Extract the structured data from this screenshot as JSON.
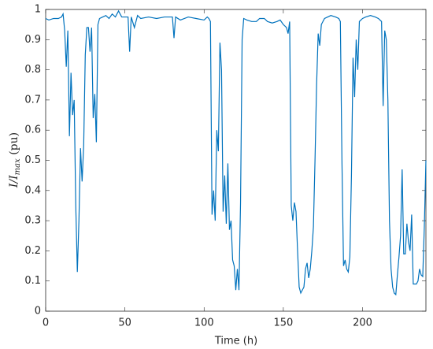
{
  "chart_data": {
    "type": "line",
    "xlabel": "Time (h)",
    "ylabel": [
      "I/I",
      "max",
      " (pu)"
    ],
    "xlim": [
      0,
      240
    ],
    "xticks": [
      0,
      50,
      100,
      150,
      200
    ],
    "ylim": [
      0,
      1
    ],
    "yticks": [
      0,
      0.1,
      0.2,
      0.3,
      0.4,
      0.5,
      0.6,
      0.7,
      0.8,
      0.9,
      1
    ],
    "series": [
      {
        "color": "#0072bd",
        "x": [
          0,
          2,
          5,
          8,
          10,
          11,
          12,
          13,
          14,
          15,
          16,
          17,
          18,
          19,
          20,
          21,
          22,
          23,
          24,
          25,
          26,
          27,
          28,
          29,
          30,
          31,
          32,
          33,
          34,
          36,
          38,
          40,
          42,
          44,
          46,
          48,
          50,
          52,
          53,
          54,
          56,
          58,
          60,
          65,
          70,
          75,
          80,
          81,
          82,
          85,
          90,
          95,
          100,
          102,
          103,
          104,
          105,
          106,
          107,
          108,
          109,
          110,
          111,
          112,
          113,
          114,
          115,
          116,
          117,
          118,
          119,
          120,
          121,
          122,
          123,
          124,
          125,
          127,
          130,
          133,
          135,
          138,
          140,
          143,
          146,
          148,
          150,
          152,
          153,
          154,
          155,
          156,
          157,
          158,
          159,
          160,
          161,
          163,
          164,
          165,
          166,
          167,
          168,
          169,
          170,
          171,
          172,
          173,
          174,
          176,
          178,
          180,
          183,
          185,
          186,
          187,
          188,
          189,
          190,
          191,
          192,
          193,
          194,
          195,
          196,
          197,
          198,
          200,
          202,
          205,
          208,
          210,
          212,
          213,
          214,
          215,
          216,
          217,
          218,
          219,
          220,
          221,
          222,
          223,
          224,
          225,
          226,
          227,
          228,
          229,
          230,
          231,
          232,
          234,
          235,
          236,
          237,
          238,
          239,
          240
        ],
        "values": [
          0.97,
          0.965,
          0.97,
          0.97,
          0.975,
          0.985,
          0.93,
          0.81,
          0.93,
          0.58,
          0.79,
          0.65,
          0.7,
          0.35,
          0.13,
          0.3,
          0.54,
          0.43,
          0.55,
          0.85,
          0.94,
          0.94,
          0.86,
          0.94,
          0.64,
          0.72,
          0.56,
          0.95,
          0.97,
          0.975,
          0.98,
          0.97,
          0.985,
          0.975,
          0.995,
          0.975,
          0.975,
          0.975,
          0.86,
          0.975,
          0.94,
          0.98,
          0.97,
          0.975,
          0.97,
          0.975,
          0.975,
          0.905,
          0.975,
          0.965,
          0.975,
          0.97,
          0.965,
          0.975,
          0.97,
          0.96,
          0.32,
          0.4,
          0.3,
          0.6,
          0.53,
          0.89,
          0.8,
          0.33,
          0.45,
          0.29,
          0.49,
          0.27,
          0.3,
          0.17,
          0.15,
          0.07,
          0.14,
          0.07,
          0.36,
          0.9,
          0.97,
          0.965,
          0.96,
          0.96,
          0.97,
          0.97,
          0.96,
          0.955,
          0.96,
          0.965,
          0.95,
          0.94,
          0.92,
          0.96,
          0.35,
          0.3,
          0.36,
          0.33,
          0.2,
          0.08,
          0.06,
          0.08,
          0.14,
          0.16,
          0.11,
          0.14,
          0.2,
          0.28,
          0.5,
          0.75,
          0.92,
          0.88,
          0.95,
          0.97,
          0.975,
          0.98,
          0.975,
          0.97,
          0.96,
          0.5,
          0.15,
          0.17,
          0.14,
          0.13,
          0.18,
          0.45,
          0.84,
          0.71,
          0.9,
          0.8,
          0.96,
          0.97,
          0.975,
          0.98,
          0.975,
          0.97,
          0.96,
          0.68,
          0.93,
          0.9,
          0.7,
          0.3,
          0.14,
          0.08,
          0.06,
          0.055,
          0.12,
          0.18,
          0.25,
          0.47,
          0.19,
          0.19,
          0.29,
          0.23,
          0.2,
          0.32,
          0.09,
          0.09,
          0.1,
          0.14,
          0.12,
          0.115,
          0.28,
          0.5
        ]
      }
    ]
  }
}
